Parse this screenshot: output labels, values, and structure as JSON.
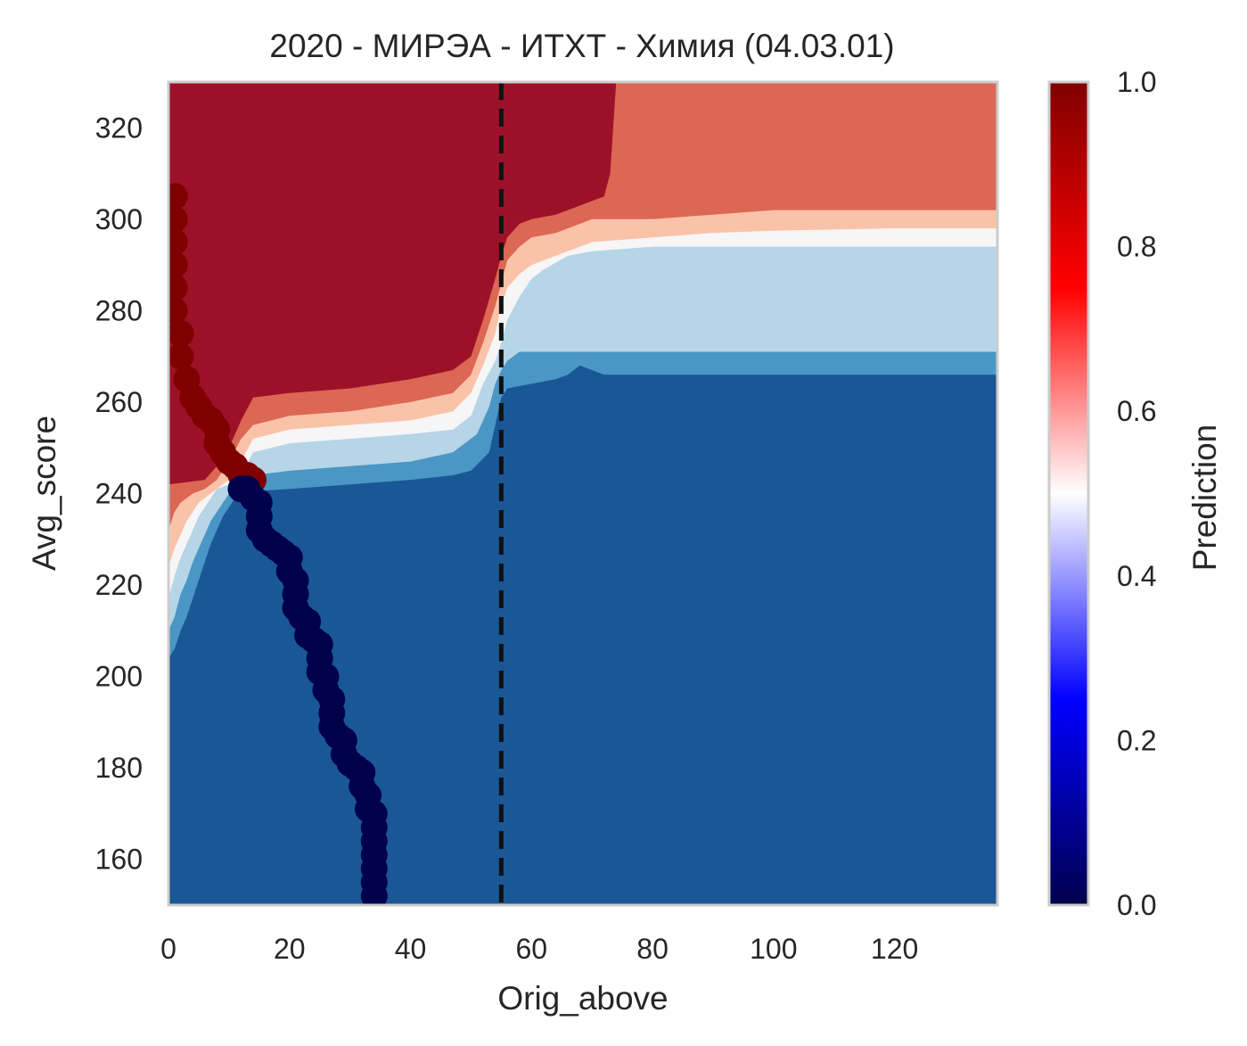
{
  "chart_data": {
    "type": "heatmap",
    "title": "2020 - МИРЭА - ИТХТ - Химия (04.03.01)",
    "xlabel": "Orig_above",
    "ylabel": "Avg_score",
    "xlim": [
      0,
      137
    ],
    "ylim": [
      150,
      330
    ],
    "x_ticks": [
      0,
      20,
      40,
      60,
      80,
      100,
      120
    ],
    "y_ticks": [
      160,
      180,
      200,
      220,
      240,
      260,
      280,
      300,
      320
    ],
    "grid": false,
    "colorbar": {
      "label": "Prediction",
      "range": [
        0,
        1
      ],
      "ticks": [
        "0.0",
        "0.2",
        "0.4",
        "0.6",
        "0.8",
        "1.0"
      ],
      "colormap": "seismic"
    },
    "reference_line": {
      "x": 55,
      "style": "dashed",
      "color": "#111111"
    },
    "contour_levels": [
      {
        "level": "0.0-0.15",
        "color": "#1a5796"
      },
      {
        "level": "0.15-0.3",
        "color": "#4a96c5"
      },
      {
        "level": "0.3-0.45",
        "color": "#b6d5e7"
      },
      {
        "level": "0.45-0.55",
        "color": "#f7f6f6"
      },
      {
        "level": "0.55-0.7",
        "color": "#fac3a9"
      },
      {
        "level": "0.7-0.85",
        "color": "#db6754"
      },
      {
        "level": "0.85-1.0",
        "color": "#9d1128"
      }
    ],
    "series": [
      {
        "name": "",
        "label_value": 1,
        "color": "#800000",
        "points": [
          [
            1,
            305
          ],
          [
            1,
            300
          ],
          [
            1,
            295
          ],
          [
            1,
            290
          ],
          [
            1,
            285
          ],
          [
            1,
            280
          ],
          [
            2,
            275
          ],
          [
            2,
            270
          ],
          [
            3,
            265
          ],
          [
            4,
            261
          ],
          [
            5,
            259
          ],
          [
            6,
            257
          ],
          [
            7,
            256
          ],
          [
            8,
            254
          ],
          [
            8,
            251
          ],
          [
            9,
            249
          ],
          [
            10,
            247
          ],
          [
            11,
            246
          ],
          [
            12,
            244
          ],
          [
            13,
            244
          ],
          [
            14,
            243
          ]
        ]
      },
      {
        "name": "",
        "label_value": 0,
        "color": "#00004c",
        "points": [
          [
            12,
            241
          ],
          [
            13,
            241
          ],
          [
            14,
            239
          ],
          [
            15,
            238
          ],
          [
            15,
            235
          ],
          [
            15,
            232
          ],
          [
            16,
            230
          ],
          [
            17,
            229
          ],
          [
            18,
            228
          ],
          [
            19,
            227
          ],
          [
            20,
            226
          ],
          [
            20,
            223
          ],
          [
            21,
            221
          ],
          [
            21,
            218
          ],
          [
            21,
            215
          ],
          [
            22,
            213
          ],
          [
            23,
            212
          ],
          [
            23,
            209
          ],
          [
            24,
            208
          ],
          [
            25,
            207
          ],
          [
            25,
            204
          ],
          [
            25,
            201
          ],
          [
            26,
            200
          ],
          [
            26,
            197
          ],
          [
            27,
            195
          ],
          [
            27,
            192
          ],
          [
            27,
            189
          ],
          [
            28,
            187
          ],
          [
            29,
            186
          ],
          [
            29,
            183
          ],
          [
            30,
            181
          ],
          [
            31,
            180
          ],
          [
            32,
            179
          ],
          [
            32,
            176
          ],
          [
            33,
            174
          ],
          [
            33,
            171
          ],
          [
            34,
            170
          ],
          [
            34,
            167
          ],
          [
            34,
            164
          ],
          [
            34,
            161
          ],
          [
            34,
            158
          ],
          [
            34,
            155
          ],
          [
            34,
            152
          ]
        ]
      }
    ]
  }
}
